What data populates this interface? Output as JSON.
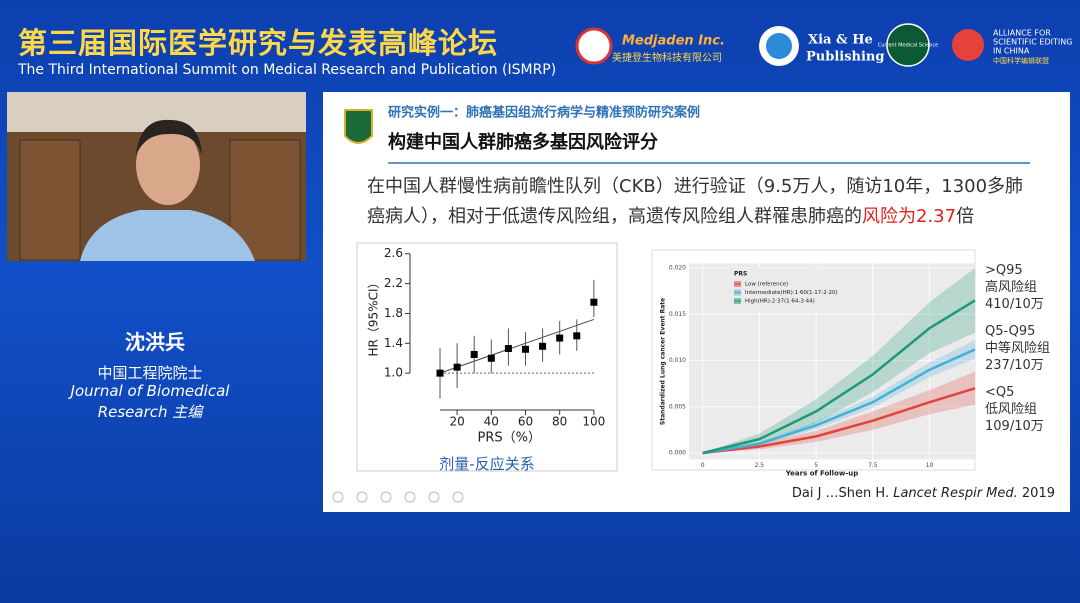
{
  "header": {
    "title_cn": "第三届国际医学研究与发表高峰论坛",
    "title_en": "The Third International Summit on Medical Research and Publication (ISMRP)",
    "logos": {
      "medjaden": "Medjaden Inc.",
      "medjaden_cn": "美捷登生物科技有限公司",
      "xiahe_1": "Xia & He",
      "xiahe_2": "Publishing",
      "cms": "Current Medical Science",
      "alliance_1": "ALLIANCE FOR",
      "alliance_2": "SCIENTIFIC EDITING",
      "alliance_3": "IN CHINA",
      "alliance_cn": "中国科学编辑联盟"
    }
  },
  "speaker": {
    "name": "沈洪兵",
    "role": "中国工程院院士",
    "journal_1": "Journal of Biomedical",
    "journal_2": "Research 主编"
  },
  "slide": {
    "subtitle": "研究实例一：肺癌基因组流行病学与精准预防研究案例",
    "title": "构建中国人群肺癌多基因风险评分",
    "body": "在中国人群慢性病前瞻性队列（CKB）进行验证（9.5万人，随访10年，1300多肺癌病人），相对于低遗传风险组，高遗传风险组人群罹患肺癌的",
    "body_highlight": "风险为2.37",
    "body_end": "倍",
    "hr_chart": {
      "type": "scatter",
      "xlabel": "PRS（%）",
      "ylabel": "HR（95%CI）",
      "caption": "剂量-反应关系",
      "x": [
        10,
        20,
        30,
        40,
        50,
        60,
        70,
        80,
        90,
        100
      ],
      "values": [
        1.0,
        1.08,
        1.25,
        1.2,
        1.33,
        1.32,
        1.36,
        1.47,
        1.5,
        1.95
      ],
      "lower": [
        0.66,
        0.8,
        1.0,
        1.0,
        1.1,
        1.1,
        1.15,
        1.25,
        1.3,
        1.75
      ],
      "upper": [
        1.34,
        1.4,
        1.5,
        1.45,
        1.6,
        1.55,
        1.6,
        1.7,
        1.72,
        2.25
      ],
      "trend": {
        "x": [
          10,
          100
        ],
        "y": [
          1.0,
          1.72
        ]
      },
      "reference": 1.0,
      "xlim": [
        -2,
        103
      ],
      "ylim": [
        0.6,
        2.65
      ],
      "xticks": [
        20,
        40,
        60,
        80,
        100
      ],
      "yticks": [
        {
          "value": 1.0,
          "label": "1.0"
        },
        1.4,
        1.8,
        2.2,
        2.6
      ]
    },
    "risk_chart": {
      "type": "line",
      "xlabel": "Years of Follow-up",
      "ylabel": "Standardized Lung cancer Event Rate",
      "legend_title": "PRS",
      "x": [
        0,
        2.5,
        5,
        7.5,
        10,
        12
      ],
      "series": [
        {
          "name": "Low (reference)",
          "color": "#e0453c",
          "values": [
            0,
            0.0007,
            0.0018,
            0.0035,
            0.0055,
            0.007
          ],
          "lower": [
            0,
            0.0004,
            0.0012,
            0.0025,
            0.0042,
            0.0052
          ],
          "upper": [
            0,
            0.001,
            0.0024,
            0.0045,
            0.0068,
            0.0088
          ]
        },
        {
          "name": "Intermediate(HR):1·60(1·17-2·20)",
          "color": "#45b0d6",
          "values": [
            0,
            0.001,
            0.003,
            0.0055,
            0.009,
            0.0112
          ],
          "lower": [
            0,
            0.0008,
            0.0026,
            0.0049,
            0.0082,
            0.0102
          ],
          "upper": [
            0,
            0.0012,
            0.0034,
            0.0061,
            0.0098,
            0.0122
          ]
        },
        {
          "name": "High(HR):2·37(1·64-3·44)",
          "color": "#1d9a76",
          "values": [
            0,
            0.0015,
            0.0045,
            0.0085,
            0.0135,
            0.0165
          ],
          "lower": [
            0,
            0.0009,
            0.0032,
            0.0066,
            0.0108,
            0.013
          ],
          "upper": [
            0,
            0.0021,
            0.0058,
            0.0105,
            0.0163,
            0.02
          ]
        }
      ],
      "xlim": [
        -0.6,
        12
      ],
      "ylim": [
        -0.0007,
        0.0205
      ],
      "xticks": [
        0,
        2.5,
        5,
        7.5,
        10
      ],
      "yticks": [
        {
          "value": 0,
          "label": "0.000"
        },
        {
          "value": 0.005,
          "label": "0.005"
        },
        {
          "value": 0.01,
          "label": "0.010"
        },
        {
          "value": 0.015,
          "label": "0.015"
        },
        {
          "value": 0.02,
          "label": "0.020"
        }
      ]
    },
    "side_labels": [
      {
        "group": ">Q95",
        "name": "高风险组",
        "rate": "410/10万"
      },
      {
        "group": "Q5-Q95",
        "name": "中等风险组",
        "rate": "237/10万"
      },
      {
        "group": "<Q5",
        "name": "低风险组",
        "rate": "109/10万"
      }
    ],
    "citation": {
      "authors": "Dai J …Shen H. ",
      "journal": "Lancet Respir Med.",
      "year": " 2019"
    }
  }
}
